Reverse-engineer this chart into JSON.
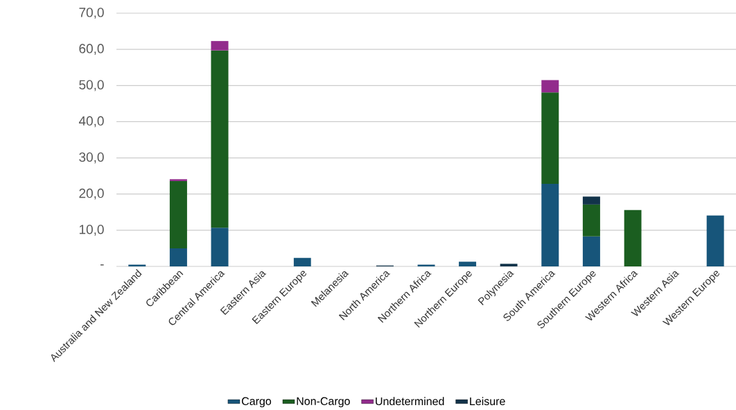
{
  "chart_data": {
    "type": "bar",
    "stacked": true,
    "categories": [
      "Australia and New Zealand",
      "Caribbean",
      "Central America",
      "Eastern Asia",
      "Eastern Europe",
      "Melanesia",
      "North America",
      "Northern Africa",
      "Northern Europe",
      "Polynesia",
      "South America",
      "Southern Europe",
      "Western Africa",
      "Western Asia",
      "Western Europe"
    ],
    "series": [
      {
        "name": "Cargo",
        "color": "#17557a",
        "values": [
          0.5,
          5.0,
          10.7,
          null,
          2.4,
          null,
          null,
          0.5,
          1.3,
          null,
          22.8,
          8.3,
          null,
          null,
          14.1
        ]
      },
      {
        "name": "Non-Cargo",
        "color": "#1b5e20",
        "values": [
          null,
          18.6,
          49.0,
          null,
          null,
          null,
          null,
          null,
          null,
          null,
          25.3,
          8.8,
          15.6,
          null,
          null
        ]
      },
      {
        "name": "Undetermined",
        "color": "#922b8c",
        "values": [
          null,
          0.5,
          2.6,
          null,
          null,
          null,
          null,
          null,
          null,
          null,
          3.4,
          null,
          null,
          null,
          null
        ]
      },
      {
        "name": "Leisure",
        "color": "#12334a",
        "values": [
          null,
          null,
          null,
          null,
          null,
          null,
          0.3,
          null,
          null,
          0.7,
          null,
          2.2,
          null,
          null,
          null
        ]
      }
    ],
    "ylim": [
      0,
      70
    ],
    "yticks": [
      {
        "value": 0,
        "label": "-"
      },
      {
        "value": 10,
        "label": "10,0"
      },
      {
        "value": 20,
        "label": "20,0"
      },
      {
        "value": 30,
        "label": "30,0"
      },
      {
        "value": 40,
        "label": "40,0"
      },
      {
        "value": 50,
        "label": "50,0"
      },
      {
        "value": 60,
        "label": "60,0"
      },
      {
        "value": 70,
        "label": "70,0"
      }
    ],
    "grid": "y",
    "legend": "bottom"
  }
}
